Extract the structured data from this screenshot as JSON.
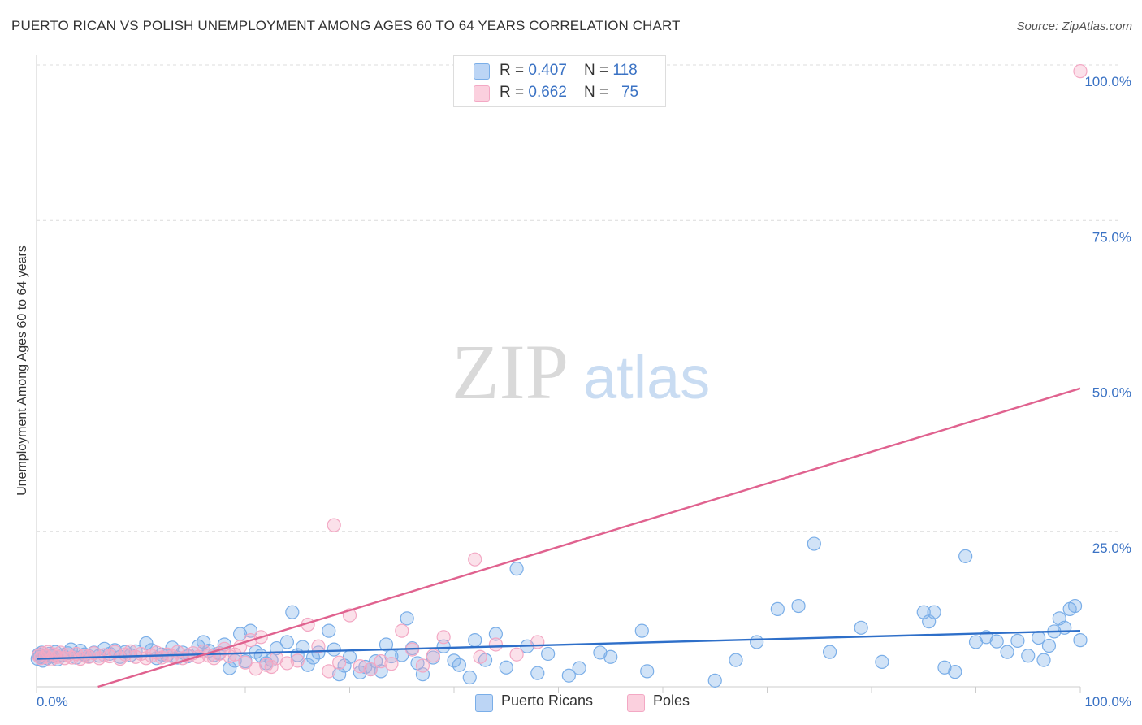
{
  "title": "PUERTO RICAN VS POLISH UNEMPLOYMENT AMONG AGES 60 TO 64 YEARS CORRELATION CHART",
  "source": "Source: ZipAtlas.com",
  "watermark": {
    "zip": "ZIP",
    "atlas": "atlas"
  },
  "legend": {
    "rows": [
      {
        "r_label": "R = ",
        "r_value": "0.407",
        "n_label": "N = ",
        "n_value": "118"
      },
      {
        "r_label": "R = ",
        "r_value": "0.662",
        "n_label": "N = ",
        "n_value": "75"
      }
    ]
  },
  "chart_data": {
    "type": "scatter",
    "title": "PUERTO RICAN VS POLISH UNEMPLOYMENT AMONG AGES 60 TO 64 YEARS CORRELATION CHART",
    "xlabel": "",
    "ylabel": "Unemployment Among Ages 60 to 64 years",
    "xlim": [
      0,
      100
    ],
    "ylim": [
      0,
      100
    ],
    "x_tick_labels": [
      "0.0%",
      "100.0%"
    ],
    "y_tick_values": [
      100,
      75,
      50,
      25
    ],
    "y_tick_labels": [
      "100.0%",
      "75.0%",
      "50.0%",
      "25.0%"
    ],
    "grid": true,
    "legend_position": "bottom-center",
    "series": [
      {
        "name": "Puerto Ricans",
        "color": "#7aaee8",
        "line_color": "#2e6fc9",
        "r": 0.407,
        "n": 118,
        "trend": {
          "x0": 0,
          "y0": 4.5,
          "x1": 100,
          "y1": 9.0
        },
        "points": [
          [
            0.1,
            4.5
          ],
          [
            0.2,
            5.2
          ],
          [
            0.3,
            4.8
          ],
          [
            0.5,
            5.5
          ],
          [
            0.6,
            4.2
          ],
          [
            0.8,
            5.0
          ],
          [
            1.0,
            4.6
          ],
          [
            1.2,
            5.3
          ],
          [
            1.5,
            4.9
          ],
          [
            1.8,
            5.6
          ],
          [
            2.0,
            4.4
          ],
          [
            2.5,
            5.1
          ],
          [
            3.0,
            5.4
          ],
          [
            3.3,
            6.0
          ],
          [
            3.8,
            4.7
          ],
          [
            4.2,
            5.8
          ],
          [
            4.6,
            5.2
          ],
          [
            5.0,
            4.9
          ],
          [
            5.5,
            5.5
          ],
          [
            6.0,
            5.0
          ],
          [
            6.5,
            6.1
          ],
          [
            7.0,
            5.3
          ],
          [
            7.5,
            5.9
          ],
          [
            8.0,
            4.8
          ],
          [
            8.5,
            5.6
          ],
          [
            9.0,
            5.1
          ],
          [
            9.5,
            5.7
          ],
          [
            10.5,
            7.0
          ],
          [
            11.0,
            5.9
          ],
          [
            11.5,
            4.6
          ],
          [
            12.0,
            5.2
          ],
          [
            12.5,
            5.0
          ],
          [
            13.0,
            6.3
          ],
          [
            13.5,
            4.7
          ],
          [
            14.0,
            5.5
          ],
          [
            14.5,
            4.9
          ],
          [
            15.5,
            6.5
          ],
          [
            16.0,
            7.2
          ],
          [
            16.5,
            5.8
          ],
          [
            17.0,
            5.1
          ],
          [
            17.5,
            5.4
          ],
          [
            18.0,
            6.8
          ],
          [
            18.5,
            3.0
          ],
          [
            19.0,
            4.2
          ],
          [
            19.5,
            8.5
          ],
          [
            20.0,
            4.1
          ],
          [
            20.5,
            9.0
          ],
          [
            21.0,
            5.6
          ],
          [
            21.5,
            5.0
          ],
          [
            22.0,
            3.8
          ],
          [
            22.5,
            4.3
          ],
          [
            23.0,
            6.2
          ],
          [
            24.0,
            7.2
          ],
          [
            24.5,
            12.0
          ],
          [
            25.0,
            5.1
          ],
          [
            25.5,
            6.4
          ],
          [
            26.0,
            3.5
          ],
          [
            26.5,
            4.7
          ],
          [
            27.0,
            5.5
          ],
          [
            28.0,
            9.0
          ],
          [
            28.5,
            6.0
          ],
          [
            29.0,
            2.0
          ],
          [
            29.5,
            3.4
          ],
          [
            30.0,
            4.8
          ],
          [
            31.0,
            2.3
          ],
          [
            31.5,
            3.2
          ],
          [
            32.0,
            2.8
          ],
          [
            32.5,
            4.1
          ],
          [
            33.0,
            2.5
          ],
          [
            33.5,
            6.8
          ],
          [
            34.0,
            4.9
          ],
          [
            35.0,
            5.1
          ],
          [
            35.5,
            11.0
          ],
          [
            36.0,
            6.2
          ],
          [
            36.5,
            3.8
          ],
          [
            37.0,
            2.0
          ],
          [
            38.0,
            4.7
          ],
          [
            39.0,
            6.5
          ],
          [
            40.0,
            4.2
          ],
          [
            40.5,
            3.5
          ],
          [
            41.5,
            1.5
          ],
          [
            42.0,
            7.5
          ],
          [
            43.0,
            4.3
          ],
          [
            44.0,
            8.5
          ],
          [
            45.0,
            3.1
          ],
          [
            46.0,
            19.0
          ],
          [
            47.0,
            6.5
          ],
          [
            48.0,
            2.2
          ],
          [
            49.0,
            5.3
          ],
          [
            51.0,
            1.8
          ],
          [
            52.0,
            3.0
          ],
          [
            54.0,
            5.5
          ],
          [
            55.0,
            4.8
          ],
          [
            58.0,
            9.0
          ],
          [
            58.5,
            2.5
          ],
          [
            65.0,
            1.0
          ],
          [
            67.0,
            4.3
          ],
          [
            69.0,
            7.2
          ],
          [
            71.0,
            12.5
          ],
          [
            73.0,
            13.0
          ],
          [
            74.5,
            23.0
          ],
          [
            76.0,
            5.6
          ],
          [
            79.0,
            9.5
          ],
          [
            81.0,
            4.0
          ],
          [
            85.0,
            12.0
          ],
          [
            85.5,
            10.5
          ],
          [
            86.0,
            12.0
          ],
          [
            87.0,
            3.1
          ],
          [
            88.0,
            2.4
          ],
          [
            89.0,
            21.0
          ],
          [
            90.0,
            7.2
          ],
          [
            91.0,
            8.0
          ],
          [
            92.0,
            7.3
          ],
          [
            93.0,
            5.6
          ],
          [
            94.0,
            7.4
          ],
          [
            95.0,
            5.0
          ],
          [
            96.0,
            7.9
          ],
          [
            96.5,
            4.3
          ],
          [
            97.0,
            6.6
          ],
          [
            97.5,
            8.9
          ],
          [
            98.0,
            11.0
          ],
          [
            98.5,
            9.5
          ],
          [
            99.0,
            12.5
          ],
          [
            99.5,
            13.0
          ],
          [
            100.0,
            7.5
          ]
        ]
      },
      {
        "name": "Poles",
        "color": "#f3a8c4",
        "line_color": "#e0628f",
        "r": 0.662,
        "n": 75,
        "trend": {
          "x0": 0,
          "y0": -3.0,
          "x1": 100,
          "y1": 48.0
        },
        "points": [
          [
            0.2,
            5.0
          ],
          [
            0.4,
            4.6
          ],
          [
            0.6,
            5.4
          ],
          [
            0.9,
            4.9
          ],
          [
            1.1,
            5.6
          ],
          [
            1.4,
            4.4
          ],
          [
            1.7,
            5.2
          ],
          [
            2.0,
            4.8
          ],
          [
            2.3,
            5.5
          ],
          [
            2.7,
            4.6
          ],
          [
            3.0,
            5.1
          ],
          [
            3.4,
            4.7
          ],
          [
            3.8,
            5.3
          ],
          [
            4.2,
            4.5
          ],
          [
            4.6,
            5.0
          ],
          [
            5.0,
            4.8
          ],
          [
            5.5,
            5.4
          ],
          [
            6.0,
            4.6
          ],
          [
            6.5,
            5.1
          ],
          [
            7.0,
            4.9
          ],
          [
            7.5,
            5.6
          ],
          [
            8.0,
            4.5
          ],
          [
            8.5,
            5.2
          ],
          [
            9.0,
            5.7
          ],
          [
            9.5,
            4.8
          ],
          [
            10.0,
            5.3
          ],
          [
            10.5,
            4.6
          ],
          [
            11.0,
            5.0
          ],
          [
            11.5,
            5.5
          ],
          [
            12.0,
            4.7
          ],
          [
            12.5,
            5.2
          ],
          [
            13.0,
            4.9
          ],
          [
            13.5,
            5.6
          ],
          [
            14.0,
            4.6
          ],
          [
            14.5,
            5.1
          ],
          [
            15.0,
            5.4
          ],
          [
            15.5,
            4.8
          ],
          [
            16.0,
            5.7
          ],
          [
            16.5,
            5.0
          ],
          [
            17.0,
            4.6
          ],
          [
            17.5,
            5.3
          ],
          [
            18.0,
            6.1
          ],
          [
            18.5,
            4.9
          ],
          [
            19.0,
            5.2
          ],
          [
            19.5,
            6.4
          ],
          [
            20.0,
            3.9
          ],
          [
            20.5,
            7.5
          ],
          [
            21.0,
            2.9
          ],
          [
            21.5,
            8.0
          ],
          [
            22.0,
            3.5
          ],
          [
            22.5,
            3.2
          ],
          [
            23.0,
            4.6
          ],
          [
            24.0,
            3.8
          ],
          [
            25.0,
            4.2
          ],
          [
            26.0,
            10.0
          ],
          [
            27.0,
            6.5
          ],
          [
            28.0,
            2.5
          ],
          [
            28.5,
            26.0
          ],
          [
            29.0,
            3.9
          ],
          [
            30.0,
            11.5
          ],
          [
            31.0,
            3.3
          ],
          [
            32.0,
            2.8
          ],
          [
            33.0,
            4.1
          ],
          [
            34.0,
            3.7
          ],
          [
            35.0,
            9.0
          ],
          [
            36.0,
            6.0
          ],
          [
            37.0,
            3.4
          ],
          [
            38.0,
            5.0
          ],
          [
            39.0,
            8.0
          ],
          [
            42.0,
            20.5
          ],
          [
            42.5,
            4.8
          ],
          [
            44.0,
            6.8
          ],
          [
            46.0,
            5.2
          ],
          [
            48.0,
            7.2
          ],
          [
            100.0,
            99.0
          ]
        ]
      }
    ]
  }
}
